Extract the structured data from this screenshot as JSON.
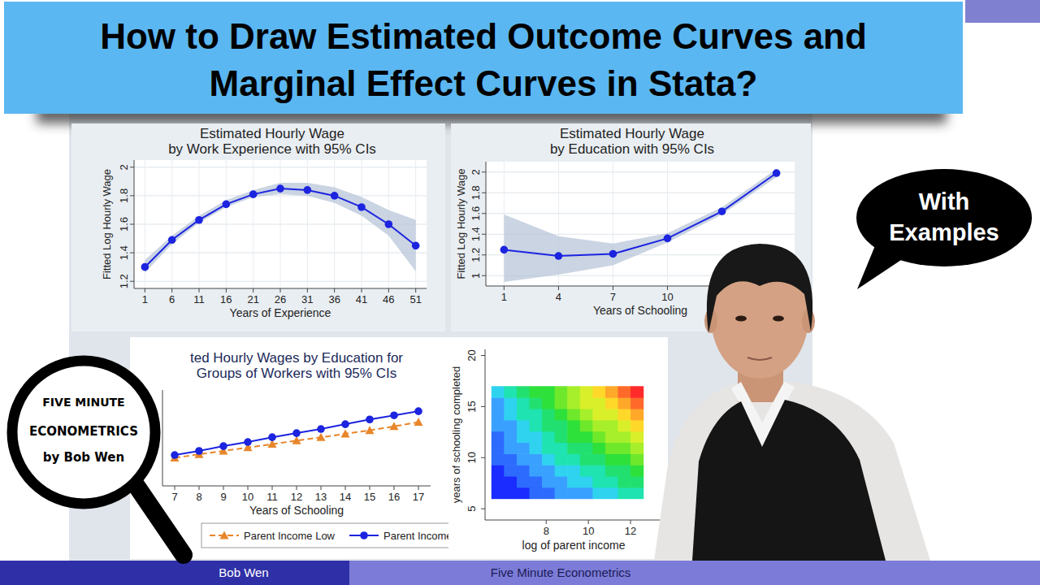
{
  "header": {
    "title_lines": [
      "How to Draw Estimated Outcome Curves and",
      "Marginal Effect Curves in Stata?"
    ]
  },
  "callout": {
    "lines": [
      "With",
      "Examples"
    ]
  },
  "logo": {
    "lines": [
      "FIVE MINUTE",
      "ECONOMETRICS",
      "by Bob Wen"
    ]
  },
  "footer": {
    "left": "Bob Wen",
    "right": "Five Minute Econometrics"
  },
  "chart_data": [
    {
      "type": "line",
      "title": [
        "Estimated Hourly Wage",
        "by Work Experience with 95% CIs"
      ],
      "x_label": "Years of Experience",
      "y_label": "Fitted Log Hourly Wage",
      "x": [
        1,
        6,
        11,
        16,
        21,
        26,
        31,
        36,
        41,
        46,
        51
      ],
      "xlim": [
        -1,
        53
      ],
      "ylim": [
        1.15,
        2.05
      ],
      "xticks": [
        1,
        6,
        11,
        16,
        21,
        26,
        31,
        36,
        41,
        46,
        51
      ],
      "yticks": [
        1.2,
        1.4,
        1.6,
        1.8,
        2
      ],
      "grid": true,
      "series": [
        {
          "color": "#1c24e0",
          "marker": "circle",
          "line_style": "solid",
          "values": [
            1.3,
            1.49,
            1.63,
            1.74,
            1.81,
            1.85,
            1.84,
            1.8,
            1.72,
            1.6,
            1.45
          ],
          "ci_lower": [
            1.26,
            1.46,
            1.61,
            1.72,
            1.79,
            1.81,
            1.8,
            1.75,
            1.66,
            1.52,
            1.27
          ],
          "ci_upper": [
            1.35,
            1.52,
            1.66,
            1.77,
            1.84,
            1.89,
            1.89,
            1.86,
            1.79,
            1.7,
            1.63
          ]
        }
      ]
    },
    {
      "type": "line",
      "title": [
        "Estimated Hourly Wage",
        "by Education with 95% CIs"
      ],
      "x_label": "Years of Schooling",
      "y_label": "Fitted Log Hourly Wage",
      "x": [
        1,
        4,
        7,
        10,
        13,
        16
      ],
      "xlim": [
        0,
        17
      ],
      "ylim": [
        0.9,
        2.1
      ],
      "xticks": [
        1,
        4,
        7,
        10
      ],
      "yticks": [
        1,
        1.2,
        1.4,
        1.6,
        1.8,
        2
      ],
      "grid": true,
      "series": [
        {
          "color": "#1c24e0",
          "marker": "circle",
          "line_style": "solid",
          "values": [
            1.25,
            1.19,
            1.21,
            1.36,
            1.62,
            1.99
          ],
          "ci_lower": [
            0.94,
            1.01,
            1.1,
            1.32,
            1.59,
            1.95
          ],
          "ci_upper": [
            1.59,
            1.38,
            1.31,
            1.41,
            1.66,
            2.03
          ]
        }
      ]
    },
    {
      "type": "line",
      "title": [
        "ted Hourly Wages by Education for",
        "Groups of Workers with 95% CIs"
      ],
      "x_label": "Years of Schooling",
      "x": [
        7,
        8,
        9,
        10,
        11,
        12,
        13,
        14,
        15,
        16,
        17
      ],
      "xlim": [
        6.5,
        17.5
      ],
      "ylim": [
        0.9,
        2.3
      ],
      "xticks": [
        7,
        8,
        9,
        10,
        11,
        12,
        13,
        14,
        15,
        16,
        17
      ],
      "tick_labels": "x",
      "grid": false,
      "legend": "bottom",
      "series": [
        {
          "name": "Parent Income Low",
          "color": "#e8862a",
          "marker": "triangle",
          "line_style": "dashed",
          "values": [
            1.31,
            1.36,
            1.41,
            1.46,
            1.51,
            1.56,
            1.61,
            1.66,
            1.71,
            1.77,
            1.83
          ]
        },
        {
          "name": "Parent Income High",
          "color": "#1c24e0",
          "marker": "circle",
          "line_style": "solid",
          "values": [
            1.35,
            1.41,
            1.48,
            1.54,
            1.61,
            1.67,
            1.73,
            1.8,
            1.87,
            1.93,
            1.99
          ]
        }
      ]
    },
    {
      "type": "contour",
      "x_label": "log of parent income",
      "y_label": "years of schooling completed",
      "xlim": [
        5.1,
        13.5
      ],
      "ylim": [
        3.9,
        20.6
      ],
      "xticks": [
        8,
        10,
        12
      ],
      "yticks": [
        5,
        10,
        15,
        20
      ],
      "x_bins": [
        5.4,
        6,
        6.6,
        7.2,
        7.8,
        8.4,
        9,
        9.6,
        10.2,
        10.8,
        11.4,
        12,
        12.6
      ],
      "y_bins": [
        6,
        7.1,
        8.2,
        9.3,
        10.4,
        11.5,
        12.6,
        13.7,
        14.8,
        15.9,
        17
      ],
      "z": [
        [
          0,
          0.4,
          0.8,
          1.2,
          1.6,
          2.0,
          2.4,
          2.8,
          3.2,
          3.6,
          4.0,
          4.4
        ],
        [
          0.4,
          0.8,
          1.3,
          1.7,
          2.2,
          2.7,
          3.1,
          3.6,
          4.0,
          4.5,
          5.0,
          5.4
        ],
        [
          0.7,
          1.2,
          1.7,
          2.3,
          2.8,
          3.3,
          3.8,
          4.3,
          4.9,
          5.4,
          5.9,
          6.4
        ],
        [
          1.1,
          1.6,
          2.2,
          2.8,
          3.4,
          4.0,
          4.5,
          5.1,
          5.7,
          6.3,
          6.9,
          7.4
        ],
        [
          1.4,
          2.0,
          2.7,
          3.3,
          4.0,
          4.6,
          5.2,
          5.9,
          6.5,
          7.2,
          7.8,
          8.4
        ],
        [
          1.8,
          2.5,
          3.2,
          3.9,
          4.6,
          5.3,
          6.0,
          6.7,
          7.4,
          8.1,
          8.8,
          9.5
        ],
        [
          2.1,
          2.9,
          3.6,
          4.4,
          5.1,
          5.9,
          6.7,
          7.4,
          8.2,
          8.9,
          9.7,
          10.5
        ],
        [
          2.5,
          3.3,
          4.1,
          4.9,
          5.7,
          6.6,
          7.4,
          8.2,
          9.0,
          9.8,
          10.7,
          11.5
        ],
        [
          2.8,
          3.7,
          4.6,
          5.4,
          6.3,
          7.2,
          8.1,
          9.0,
          9.8,
          10.7,
          11.6,
          12.5
        ],
        [
          3.2,
          4.1,
          5.0,
          6.0,
          6.9,
          7.9,
          8.8,
          9.7,
          10.7,
          11.6,
          12.6,
          13.5
        ]
      ],
      "zlim": [
        0,
        14
      ],
      "colors": [
        "#1a2cff",
        "#2d6bff",
        "#3aa0ff",
        "#2fd3f0",
        "#1fe3b0",
        "#22e070",
        "#2ee03a",
        "#6ee82a",
        "#a6ef2a",
        "#d8ef2a",
        "#ffd82a",
        "#ffa82a",
        "#ff6a2a",
        "#ff2a2a"
      ]
    }
  ]
}
